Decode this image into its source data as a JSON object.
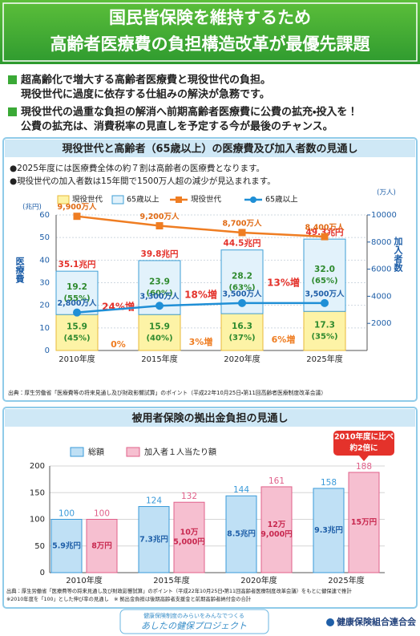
{
  "header": {
    "title_lines": [
      "国民皆保険を維持するため",
      "高齢者医療費の負担構造改革が最優先課題"
    ]
  },
  "bullets": [
    {
      "lines": [
        "超高齢化で増大する高齢者医療費と現役世代の負担。",
        "現役世代に過度に依存する仕組みの解決が急務です。"
      ]
    },
    {
      "lines": [
        "現役世代の過重な負担の解消へ前期高齢者医療費に公費の拡充・投入を！",
        "公費の拡充は、消費税率の見直しを予定する今が最後のチャンス。"
      ]
    }
  ],
  "chart_data": [
    {
      "type": "bar-line",
      "title": "現役世代と高齢者（65歳以上）の医療費及び加入者数の見通し",
      "notes": [
        "●2025年度には医療費全体の約７割は高齢者の医療費となります。",
        "●現役世代の加入者数は15年間で1500万人超の減少が見込まれます。"
      ],
      "categories": [
        "2010年度",
        "2015年度",
        "2020年度",
        "2025年度"
      ],
      "ylabel": "医療費",
      "yunit": "(兆円)",
      "y2label": "加入者数",
      "y2unit": "(万人)",
      "ylim": [
        0,
        60
      ],
      "yticks": [
        0,
        10,
        20,
        30,
        40,
        50,
        60
      ],
      "y2lim": [
        0,
        10000
      ],
      "y2ticks": [
        2000,
        4000,
        6000,
        8000,
        10000
      ],
      "grid": true,
      "stacked": true,
      "series": [
        {
          "name": "現役世代",
          "kind": "bar",
          "color": "#fdf3a6",
          "values": [
            15.9,
            15.9,
            16.3,
            17.3
          ],
          "share_labels": [
            "(45%)",
            "(40%)",
            "(37%)",
            "(35%)"
          ]
        },
        {
          "name": "65歳以上",
          "kind": "bar",
          "color": "#e2f2fb",
          "values": [
            19.2,
            23.9,
            28.2,
            32.0
          ],
          "value_labels": [
            "19.2",
            "23.9",
            "28.2",
            "32.0"
          ],
          "share_labels": [
            "(55%)",
            "(60%)",
            "(63%)",
            "(65%)"
          ]
        },
        {
          "name": "現役世代",
          "kind": "line",
          "axis": "y2",
          "color": "#ef7d22",
          "values": [
            9900,
            9200,
            8700,
            8400
          ],
          "value_labels": [
            "9,900万人",
            "9,200万人",
            "8,700万人",
            "8,400万人"
          ]
        },
        {
          "name": "65歳以上",
          "kind": "line",
          "axis": "y2",
          "color": "#1f8fd6",
          "values": [
            2800,
            3300,
            3500,
            3500
          ],
          "value_labels": [
            "2,800万人",
            "3,300万人",
            "3,500万人",
            "3,500万人"
          ]
        }
      ],
      "total_labels": [
        "35.1兆円",
        "39.8兆円",
        "44.5兆円",
        "49.3兆円"
      ],
      "growth_labels": {
        "elderly": [
          "24%増",
          "18%増",
          "13%増"
        ],
        "working": [
          "0%",
          "3%増",
          "6%増"
        ]
      },
      "source": "出典：厚生労働省「医療費等の将来見通し及び財政影響試算」のポイント（平成22年10月25日・第11回高齢者医療制度改革会議）"
    },
    {
      "type": "grouped-bar",
      "title": "被用者保険の拠出金負担の見通し",
      "categories": [
        "2010年度",
        "2015年度",
        "2020年度",
        "2025年度"
      ],
      "ylim": [
        0,
        200
      ],
      "yticks": [
        0,
        50,
        100,
        150,
        200
      ],
      "series": [
        {
          "name": "総額",
          "color": "#bfe0f5",
          "values": [
            100,
            124,
            144,
            158
          ],
          "inner_labels": [
            [
              "5.9兆円"
            ],
            [
              "7.3兆円"
            ],
            [
              "8.5兆円"
            ],
            [
              "9.3兆円"
            ]
          ]
        },
        {
          "name": "加入者１人当たり額",
          "color": "#f6bfd0",
          "values": [
            100,
            132,
            161,
            188
          ],
          "inner_labels": [
            [
              "8万円"
            ],
            [
              "10万",
              "5,000円"
            ],
            [
              "12万",
              "9,000円"
            ],
            [
              "15万円"
            ]
          ]
        }
      ],
      "callout": [
        "2010年度に比べ",
        "約2倍に"
      ],
      "sources": [
        "出典：厚生労働省「医療費等の将来見通し及び財政影響試算」のポイント（平成22年10月25日・第11回高齢者医療制度改革会議）をもとに健保連で推計",
        "※2010年度を「100」とした伸び率の見通し　※ 拠出金負担は後期高齢者支援金と前期高齢者納付金の合計"
      ]
    }
  ],
  "footer": {
    "tagline": "健康保険制度のみらいをみんなでつくる",
    "project": "あしたの健保プロジェクト",
    "org": "健康保険組合連合会"
  }
}
